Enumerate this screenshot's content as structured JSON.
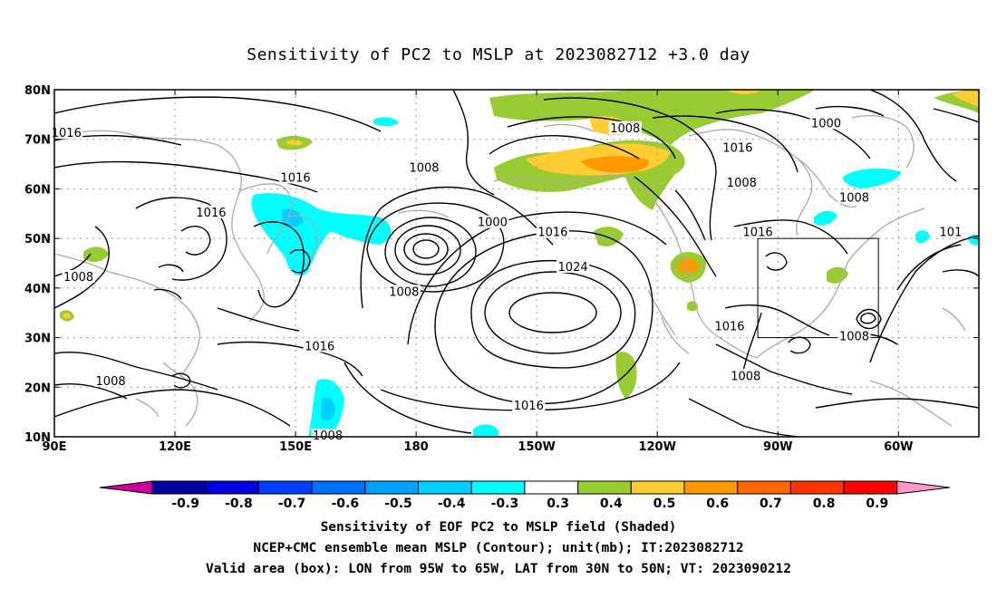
{
  "title": "Sensitivity of PC2 to MSLP at 2023082712 +3.0 day",
  "map": {
    "lat_ticks": [
      "80N",
      "70N",
      "60N",
      "50N",
      "40N",
      "30N",
      "20N",
      "10N"
    ],
    "lon_ticks": [
      "90E",
      "120E",
      "150E",
      "180",
      "150W",
      "120W",
      "90W",
      "60W"
    ],
    "contour_labels": [
      {
        "text": "1016",
        "lon": 93,
        "lat": 71
      },
      {
        "text": "1008",
        "lon": -128,
        "lat": 72
      },
      {
        "text": "1000",
        "lon": -78,
        "lat": 73
      },
      {
        "text": "1008",
        "lon": -178,
        "lat": 64
      },
      {
        "text": "1016",
        "lon": -100,
        "lat": 68
      },
      {
        "text": "1016",
        "lon": 150,
        "lat": 62
      },
      {
        "text": "1008",
        "lon": -99,
        "lat": 61
      },
      {
        "text": "1016",
        "lon": 129,
        "lat": 55
      },
      {
        "text": "1000",
        "lon": -161,
        "lat": 53
      },
      {
        "text": "1008",
        "lon": -71,
        "lat": 58
      },
      {
        "text": "1016",
        "lon": -146,
        "lat": 51
      },
      {
        "text": "1016",
        "lon": -95,
        "lat": 51
      },
      {
        "text": "101",
        "lon": -47,
        "lat": 51
      },
      {
        "text": "1024",
        "lon": -141,
        "lat": 44
      },
      {
        "text": "1008",
        "lon": 96,
        "lat": 42
      },
      {
        "text": "1008",
        "lon": -183,
        "lat": 39
      },
      {
        "text": "1016",
        "lon": -102,
        "lat": 32
      },
      {
        "text": "1008",
        "lon": -71,
        "lat": 30
      },
      {
        "text": "1016",
        "lon": 156,
        "lat": 28
      },
      {
        "text": "1008",
        "lon": 104,
        "lat": 21
      },
      {
        "text": "1008",
        "lon": -98,
        "lat": 22
      },
      {
        "text": "1016",
        "lon": -152,
        "lat": 16
      },
      {
        "text": "1008",
        "lon": 158,
        "lat": 10
      }
    ],
    "valid_box": {
      "lon_min": -95,
      "lon_max": -65,
      "lat_min": 30,
      "lat_max": 50
    }
  },
  "colorbar": {
    "labels": [
      "-0.9",
      "-0.8",
      "-0.7",
      "-0.6",
      "-0.5",
      "-0.4",
      "-0.3",
      "0.3",
      "0.4",
      "0.5",
      "0.6",
      "0.7",
      "0.8",
      "0.9"
    ],
    "colors": [
      "#0000a0",
      "#0000e0",
      "#0040ff",
      "#0070ff",
      "#00a0ff",
      "#00d0ff",
      "#00ffff",
      "#ffffff",
      "#99cc33",
      "#ffcc33",
      "#ff9900",
      "#ff6600",
      "#ff3300",
      "#ff0000"
    ],
    "left_arrow_color": "#cc0099",
    "right_arrow_color": "#ff99cc"
  },
  "caption": {
    "line1": "Sensitivity of EOF PC2 to MSLP field (Shaded)",
    "line2": "NCEP+CMC ensemble mean MSLP (Contour); unit(mb); IT:2023082712",
    "line3": "Valid area (box): LON from 95W to 65W, LAT from 30N to 50N; VT: 2023090212"
  }
}
